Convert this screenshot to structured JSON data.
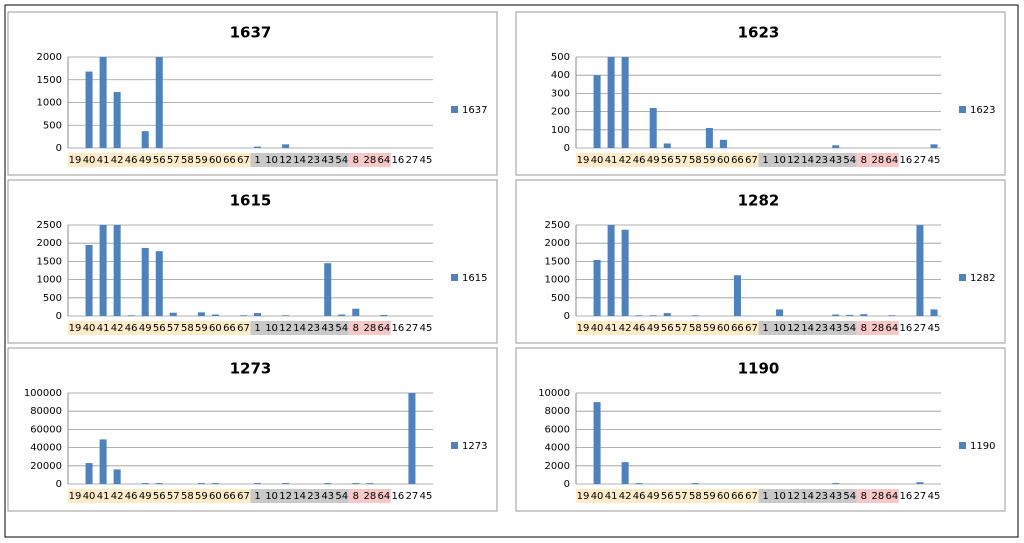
{
  "chart_data": [
    {
      "type": "bar",
      "title": "1637",
      "categories": [
        "19",
        "40",
        "41",
        "42",
        "46",
        "49",
        "56",
        "57",
        "58",
        "59",
        "60",
        "66",
        "67",
        "1",
        "10",
        "12",
        "14",
        "23",
        "43",
        "54",
        "8",
        "28",
        "64",
        "16",
        "27",
        "45"
      ],
      "series": [
        {
          "name": "1637",
          "color": "#4f81bd",
          "values": [
            0,
            1680,
            2000,
            1230,
            0,
            370,
            2000,
            0,
            0,
            0,
            0,
            0,
            0,
            30,
            0,
            80,
            0,
            0,
            0,
            0,
            0,
            0,
            0,
            0,
            0,
            0
          ]
        }
      ],
      "ylim": [
        0,
        2000
      ],
      "yticks": [
        0,
        500,
        1000,
        1500,
        2000
      ],
      "grid": true
    },
    {
      "type": "bar",
      "title": "1623",
      "categories": [
        "19",
        "40",
        "41",
        "42",
        "46",
        "49",
        "56",
        "57",
        "58",
        "59",
        "60",
        "66",
        "67",
        "1",
        "10",
        "12",
        "14",
        "23",
        "43",
        "54",
        "8",
        "28",
        "64",
        "16",
        "27",
        "45"
      ],
      "series": [
        {
          "name": "1623",
          "color": "#4f81bd",
          "values": [
            0,
            400,
            500,
            500,
            0,
            220,
            25,
            0,
            0,
            110,
            45,
            0,
            0,
            0,
            0,
            0,
            0,
            0,
            15,
            0,
            0,
            0,
            0,
            0,
            0,
            20
          ]
        }
      ],
      "ylim": [
        0,
        500
      ],
      "yticks": [
        0,
        100,
        200,
        300,
        400,
        500
      ],
      "grid": true
    },
    {
      "type": "bar",
      "title": "1615",
      "categories": [
        "19",
        "40",
        "41",
        "42",
        "46",
        "49",
        "56",
        "57",
        "58",
        "59",
        "60",
        "66",
        "67",
        "1",
        "10",
        "12",
        "14",
        "23",
        "43",
        "54",
        "8",
        "28",
        "64",
        "16",
        "27",
        "45"
      ],
      "series": [
        {
          "name": "1615",
          "color": "#4f81bd",
          "values": [
            0,
            1950,
            2500,
            2500,
            20,
            1870,
            1780,
            90,
            0,
            100,
            40,
            0,
            20,
            80,
            0,
            20,
            0,
            0,
            1450,
            40,
            200,
            0,
            30,
            0,
            0,
            0
          ]
        }
      ],
      "ylim": [
        0,
        2500
      ],
      "yticks": [
        0,
        500,
        1000,
        1500,
        2000,
        2500
      ],
      "grid": true
    },
    {
      "type": "bar",
      "title": "1282",
      "categories": [
        "19",
        "40",
        "41",
        "42",
        "46",
        "49",
        "56",
        "57",
        "58",
        "59",
        "60",
        "66",
        "67",
        "1",
        "10",
        "12",
        "14",
        "23",
        "43",
        "54",
        "8",
        "28",
        "64",
        "16",
        "27",
        "45"
      ],
      "series": [
        {
          "name": "1282",
          "color": "#4f81bd",
          "values": [
            0,
            1540,
            2500,
            2370,
            20,
            20,
            80,
            0,
            20,
            0,
            0,
            1120,
            0,
            0,
            180,
            0,
            0,
            0,
            40,
            30,
            50,
            0,
            20,
            0,
            2500,
            180
          ]
        }
      ],
      "ylim": [
        0,
        2500
      ],
      "yticks": [
        0,
        500,
        1000,
        1500,
        2000,
        2500
      ],
      "grid": true
    },
    {
      "type": "bar",
      "title": "1273",
      "categories": [
        "19",
        "40",
        "41",
        "42",
        "46",
        "49",
        "56",
        "57",
        "58",
        "59",
        "60",
        "66",
        "67",
        "1",
        "10",
        "12",
        "14",
        "23",
        "43",
        "54",
        "8",
        "28",
        "64",
        "16",
        "27",
        "45"
      ],
      "series": [
        {
          "name": "1273",
          "color": "#4f81bd",
          "values": [
            0,
            23000,
            49000,
            16000,
            0,
            1000,
            1000,
            0,
            0,
            1000,
            1000,
            0,
            0,
            1000,
            0,
            1000,
            0,
            0,
            1000,
            0,
            1000,
            1000,
            0,
            0,
            100000,
            0
          ]
        }
      ],
      "ylim": [
        0,
        100000
      ],
      "yticks": [
        0,
        20000,
        40000,
        60000,
        80000,
        100000
      ],
      "grid": true
    },
    {
      "type": "bar",
      "title": "1190",
      "categories": [
        "19",
        "40",
        "41",
        "42",
        "46",
        "49",
        "56",
        "57",
        "58",
        "59",
        "60",
        "66",
        "67",
        "1",
        "10",
        "12",
        "14",
        "23",
        "43",
        "54",
        "8",
        "28",
        "64",
        "16",
        "27",
        "45"
      ],
      "series": [
        {
          "name": "1190",
          "color": "#4f81bd",
          "values": [
            0,
            9000,
            0,
            2400,
            100,
            0,
            0,
            0,
            100,
            0,
            0,
            0,
            0,
            0,
            0,
            0,
            0,
            0,
            100,
            0,
            0,
            0,
            0,
            0,
            200,
            0
          ]
        }
      ],
      "ylim": [
        0,
        10000
      ],
      "yticks": [
        0,
        2000,
        4000,
        6000,
        8000,
        10000
      ],
      "grid": true
    }
  ]
}
